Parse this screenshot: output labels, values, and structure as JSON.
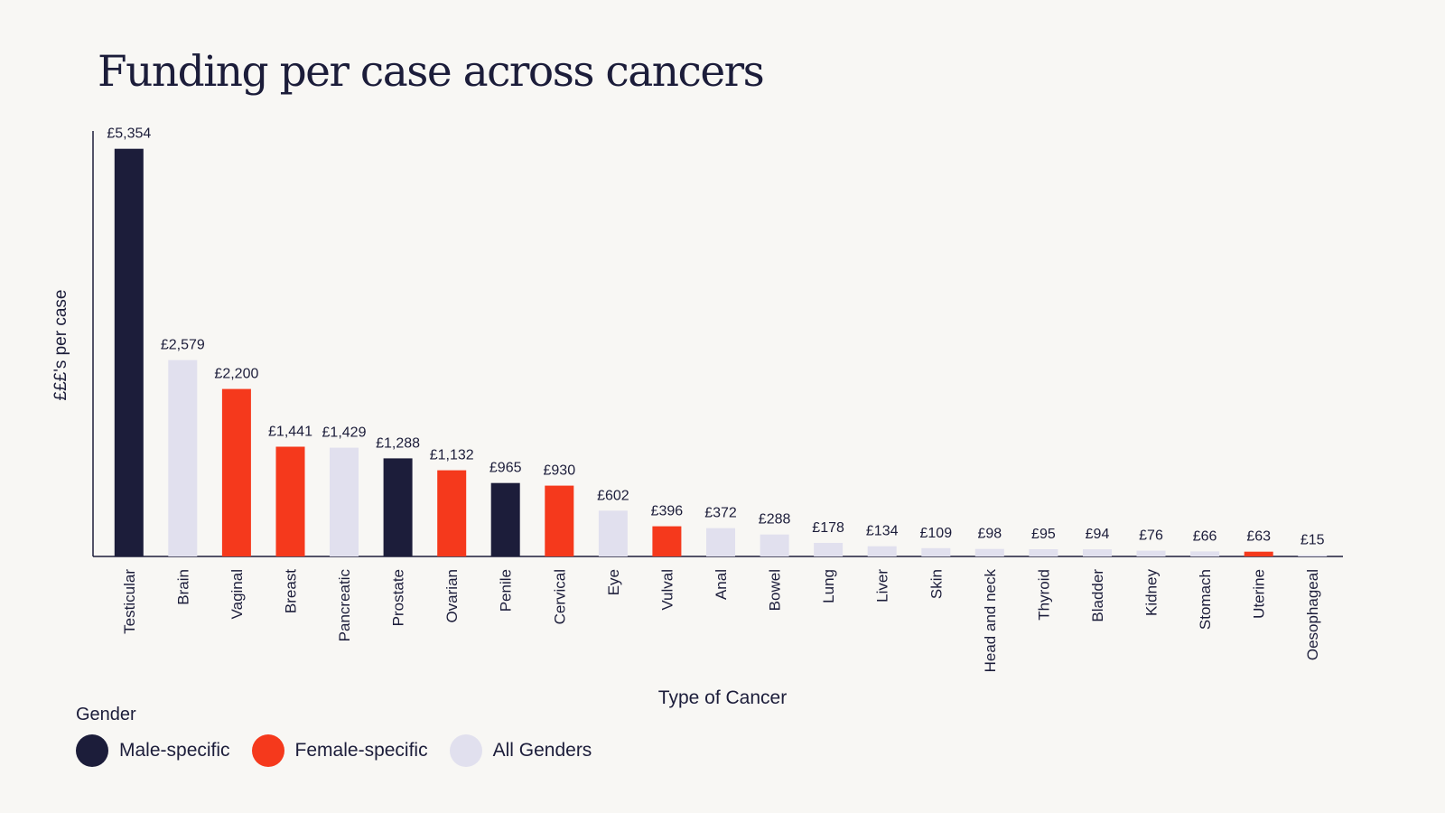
{
  "chart_data": {
    "type": "bar",
    "title": "Funding per case across cancers",
    "xlabel": "Type of Cancer",
    "ylabel": "£££'s per case",
    "ylim": [
      0,
      5600
    ],
    "grid": false,
    "legend_title": "Gender",
    "legend_position": "bottom-left",
    "groups": [
      {
        "key": "male",
        "name": "Male-specific",
        "color": "#1c1d3a"
      },
      {
        "key": "female",
        "name": "Female-specific",
        "color": "#f5391c"
      },
      {
        "key": "all",
        "name": "All Genders",
        "color": "#e1e0ee"
      }
    ],
    "categories": [
      "Testicular",
      "Brain",
      "Vaginal",
      "Breast",
      "Pancreatic",
      "Prostate",
      "Ovarian",
      "Penile",
      "Cervical",
      "Eye",
      "Vulval",
      "Anal",
      "Bowel",
      "Lung",
      "Liver",
      "Skin",
      "Head and neck",
      "Thyroid",
      "Bladder",
      "Kidney",
      "Stomach",
      "Uterine",
      "Oesophageal"
    ],
    "values": [
      5354,
      2579,
      2200,
      1441,
      1429,
      1288,
      1132,
      965,
      930,
      602,
      396,
      372,
      288,
      178,
      134,
      109,
      98,
      95,
      94,
      76,
      66,
      63,
      15
    ],
    "value_labels": [
      "£5,354",
      "£2,579",
      "£2,200",
      "£1,441",
      "£1,429",
      "£1,288",
      "£1,132",
      "£965",
      "£930",
      "£602",
      "£396",
      "£372",
      "£288",
      "£178",
      "£134",
      "£109",
      "£98",
      "£95",
      "£94",
      "£76",
      "£66",
      "£63",
      "£15"
    ],
    "bar_groups": [
      "male",
      "all",
      "female",
      "female",
      "all",
      "male",
      "female",
      "male",
      "female",
      "all",
      "female",
      "all",
      "all",
      "all",
      "all",
      "all",
      "all",
      "all",
      "all",
      "all",
      "all",
      "female",
      "all"
    ]
  }
}
